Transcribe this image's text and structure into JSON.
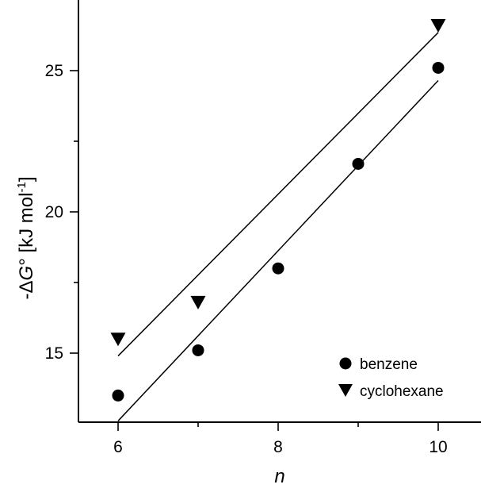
{
  "chart_data": {
    "type": "scatter",
    "xlabel": "n",
    "ylabel_parts": {
      "prefix": "-Δ",
      "italic": "G",
      "suffix": "° [kJ mol",
      "sup": "-1",
      "close": "]"
    },
    "xlim": [
      5.5,
      11.2
    ],
    "ylim": [
      12.5,
      27.5
    ],
    "x_ticks": [
      6,
      8,
      10
    ],
    "x_tick_labels": [
      "6",
      "8",
      "10"
    ],
    "x_minor_ticks": [
      7,
      9
    ],
    "y_ticks": [
      15,
      20,
      25
    ],
    "y_tick_labels": [
      "15",
      "20",
      "25"
    ],
    "y_minor_ticks": [
      17.5,
      22.5
    ],
    "grid": false,
    "legend_position": "bottom-right",
    "series": [
      {
        "name": "benzene",
        "marker": "circle",
        "x": [
          6,
          7,
          8,
          9,
          10
        ],
        "y": [
          13.5,
          15.1,
          18.0,
          21.7,
          25.1
        ],
        "fit": {
          "x": [
            6,
            10
          ],
          "y": [
            12.6,
            24.65
          ]
        }
      },
      {
        "name": "cyclohexane",
        "marker": "triangle-down",
        "x": [
          6,
          7,
          10
        ],
        "y": [
          15.5,
          16.8,
          26.6
        ],
        "fit": {
          "x": [
            6,
            10
          ],
          "y": [
            14.9,
            26.35
          ]
        }
      }
    ]
  }
}
